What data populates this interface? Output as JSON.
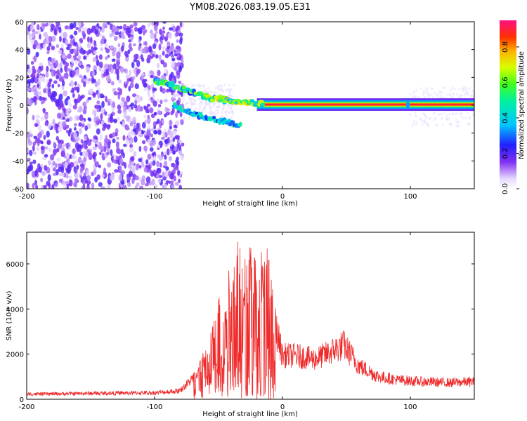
{
  "title": "YM08.2026.083.19.05.E31",
  "colors": {
    "snr_line": "#ee2a2a",
    "spectrogram_noise": "#8030f0",
    "background": "#ffffff"
  },
  "chart_data": [
    {
      "type": "heatmap",
      "xlabel": "Height of straight line (km)",
      "ylabel": "Frequency (Hz)",
      "xlim": [
        -200,
        150
      ],
      "ylim": [
        -60,
        60
      ],
      "x_ticks": [
        "-200",
        "-100",
        "0",
        "100"
      ],
      "y_ticks": [
        "60",
        "40",
        "20",
        "0",
        "-20",
        "-40",
        "-60"
      ],
      "colorbar": {
        "label": "Normalized spectral amplitude",
        "range": [
          0.0,
          0.95
        ],
        "ticks": [
          "0.0",
          "0.2",
          "0.4",
          "0.6",
          "0.8"
        ],
        "colormap": "rainbow (white-purple-blue-cyan-green-yellow-red-magenta)"
      },
      "features": {
        "noise_region_x": [
          -200,
          -78
        ],
        "track": [
          {
            "x": -100,
            "y": 18
          },
          {
            "x": -85,
            "y": 14
          },
          {
            "x": -70,
            "y": 9
          },
          {
            "x": -55,
            "y": 5
          },
          {
            "x": -40,
            "y": 3
          },
          {
            "x": -25,
            "y": 2
          },
          {
            "x": -15,
            "y": 1
          },
          {
            "x": 0,
            "y": 0.5
          },
          {
            "x": 150,
            "y": 0.5
          }
        ],
        "lower_branch": [
          {
            "x": -85,
            "y": 0
          },
          {
            "x": -70,
            "y": -6
          },
          {
            "x": -55,
            "y": -10
          },
          {
            "x": -40,
            "y": -13
          },
          {
            "x": -32,
            "y": -15
          }
        ],
        "steady_band_x": [
          -20,
          150
        ],
        "steady_band_y": [
          -1,
          2
        ]
      }
    },
    {
      "type": "line",
      "xlabel": "Height of straight line (km)",
      "ylabel": "SNR (10 * v/v)",
      "xlim": [
        -200,
        150
      ],
      "ylim": [
        0,
        7400
      ],
      "x_ticks": [
        "-200",
        "-100",
        "0",
        "100"
      ],
      "y_ticks": [
        "6000",
        "4000",
        "2000",
        "0"
      ],
      "series": [
        {
          "envelope": [
            {
              "x": -200,
              "y": 300
            },
            {
              "x": -150,
              "y": 350
            },
            {
              "x": -100,
              "y": 380
            },
            {
              "x": -80,
              "y": 500
            },
            {
              "x": -70,
              "y": 1200
            },
            {
              "x": -60,
              "y": 2500
            },
            {
              "x": -50,
              "y": 4500
            },
            {
              "x": -40,
              "y": 6500
            },
            {
              "x": -35,
              "y": 7300
            },
            {
              "x": -25,
              "y": 6800
            },
            {
              "x": -18,
              "y": 7100
            },
            {
              "x": -10,
              "y": 6900
            },
            {
              "x": -5,
              "y": 4000
            },
            {
              "x": 0,
              "y": 2500
            },
            {
              "x": 10,
              "y": 2500
            },
            {
              "x": 25,
              "y": 2300
            },
            {
              "x": 35,
              "y": 2600
            },
            {
              "x": 48,
              "y": 3100
            },
            {
              "x": 60,
              "y": 1900
            },
            {
              "x": 75,
              "y": 1300
            },
            {
              "x": 90,
              "y": 1100
            },
            {
              "x": 110,
              "y": 1000
            },
            {
              "x": 130,
              "y": 950
            },
            {
              "x": 150,
              "y": 1000
            }
          ]
        }
      ]
    }
  ]
}
